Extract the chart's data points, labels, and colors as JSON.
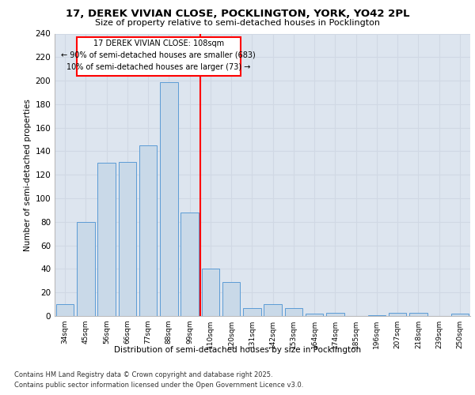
{
  "title1": "17, DEREK VIVIAN CLOSE, POCKLINGTON, YORK, YO42 2PL",
  "title2": "Size of property relative to semi-detached houses in Pocklington",
  "xlabel": "Distribution of semi-detached houses by size in Pocklington",
  "ylabel": "Number of semi-detached properties",
  "categories": [
    "34sqm",
    "45sqm",
    "56sqm",
    "66sqm",
    "77sqm",
    "88sqm",
    "99sqm",
    "110sqm",
    "120sqm",
    "131sqm",
    "142sqm",
    "153sqm",
    "164sqm",
    "174sqm",
    "185sqm",
    "196sqm",
    "207sqm",
    "218sqm",
    "239sqm",
    "250sqm"
  ],
  "values": [
    10,
    80,
    130,
    131,
    145,
    199,
    88,
    40,
    29,
    7,
    10,
    7,
    2,
    3,
    0,
    1,
    3,
    3,
    0,
    2
  ],
  "bar_color": "#c9d9e8",
  "bar_edge_color": "#5b9bd5",
  "grid_color": "#d0d8e4",
  "background_color": "#dde5ef",
  "red_line_index": 7,
  "annotation_title": "17 DEREK VIVIAN CLOSE: 108sqm",
  "annotation_line1": "← 90% of semi-detached houses are smaller (683)",
  "annotation_line2": "10% of semi-detached houses are larger (73) →",
  "footer1": "Contains HM Land Registry data © Crown copyright and database right 2025.",
  "footer2": "Contains public sector information licensed under the Open Government Licence v3.0.",
  "ylim": [
    0,
    240
  ],
  "yticks": [
    0,
    20,
    40,
    60,
    80,
    100,
    120,
    140,
    160,
    180,
    200,
    220,
    240
  ]
}
